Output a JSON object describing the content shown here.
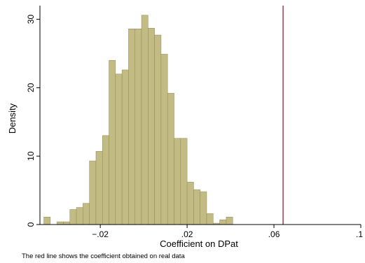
{
  "chart_data": {
    "type": "bar",
    "xlabel": "Coefficient on DPat",
    "ylabel": "Density",
    "xlim": [
      -0.0478,
      0.1
    ],
    "ylim": [
      0,
      32
    ],
    "x_ticks": [
      -0.02,
      0.02,
      0.06,
      0.1
    ],
    "x_tick_labels": [
      "−.02",
      ".02",
      ".06",
      ".1"
    ],
    "y_ticks": [
      0,
      10,
      20,
      30
    ],
    "y_tick_labels": [
      "0",
      "10",
      "20",
      "30"
    ],
    "bin_width": 0.003,
    "bins": [
      {
        "x": -0.0445,
        "y": 1.1
      },
      {
        "x": -0.0385,
        "y": 0.4
      },
      {
        "x": -0.0355,
        "y": 0.4
      },
      {
        "x": -0.0325,
        "y": 2.2
      },
      {
        "x": -0.0295,
        "y": 2.5
      },
      {
        "x": -0.0265,
        "y": 3.1
      },
      {
        "x": -0.0235,
        "y": 9.3
      },
      {
        "x": -0.0205,
        "y": 10.7
      },
      {
        "x": -0.0175,
        "y": 13.0
      },
      {
        "x": -0.0145,
        "y": 24.0
      },
      {
        "x": -0.0115,
        "y": 22.0
      },
      {
        "x": -0.0085,
        "y": 22.6
      },
      {
        "x": -0.0055,
        "y": 28.6
      },
      {
        "x": -0.0025,
        "y": 28.6
      },
      {
        "x": 0.0005,
        "y": 30.6
      },
      {
        "x": 0.0035,
        "y": 28.7
      },
      {
        "x": 0.0065,
        "y": 27.7
      },
      {
        "x": 0.0095,
        "y": 24.9
      },
      {
        "x": 0.0125,
        "y": 19.2
      },
      {
        "x": 0.0155,
        "y": 12.6
      },
      {
        "x": 0.0185,
        "y": 12.6
      },
      {
        "x": 0.0215,
        "y": 6.2
      },
      {
        "x": 0.0245,
        "y": 5.1
      },
      {
        "x": 0.0275,
        "y": 4.8
      },
      {
        "x": 0.0305,
        "y": 1.6
      },
      {
        "x": 0.0335,
        "y": 0.2
      },
      {
        "x": 0.0365,
        "y": 0.7
      },
      {
        "x": 0.0395,
        "y": 1.1
      }
    ],
    "reference_line": {
      "x": 0.0642,
      "color": "#9b1c31"
    },
    "bar_fill": "#c3bb84",
    "bar_stroke": "#8f8a58",
    "grid": false,
    "legend": "none"
  },
  "note": "The red line shows the coefficient obtained on real data"
}
